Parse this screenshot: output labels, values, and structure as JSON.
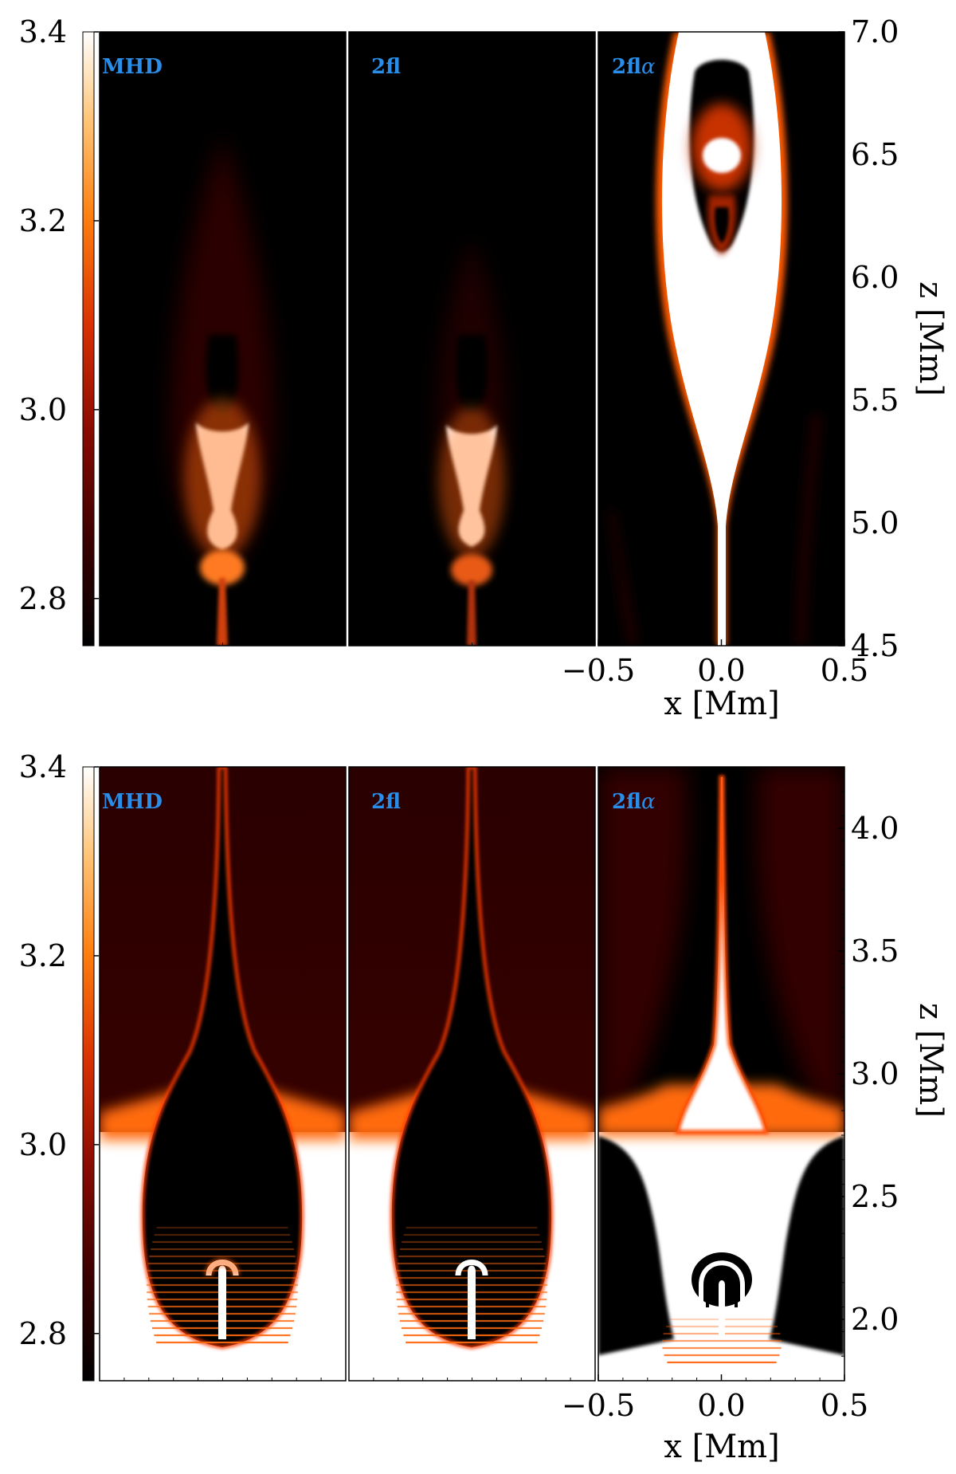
{
  "colors": {
    "background": "#000000",
    "label": "#2a8ee8",
    "colormap": [
      "#000000",
      "#3a0000",
      "#8a0a00",
      "#d83000",
      "#ff7f0f",
      "#ffc67a",
      "#ffffff"
    ]
  },
  "chart_data": [
    {
      "type": "heatmap",
      "name": "top-row",
      "colorbar": {
        "ticks": [
          "2.8",
          "3.0",
          "3.2",
          "3.4"
        ],
        "values": [
          2.8,
          3.0,
          3.2,
          3.4
        ],
        "range": [
          2.75,
          3.4
        ]
      },
      "panels": [
        {
          "label": "MHD"
        },
        {
          "label": "2fl"
        },
        {
          "label": "2fl",
          "label_suffix": "α"
        }
      ],
      "x_axis": {
        "label": "x [Mm]",
        "ticks": [
          "−0.5",
          "0.0",
          "0.5"
        ],
        "values": [
          -0.5,
          0.0,
          0.5
        ],
        "range": [
          -0.5,
          0.5
        ]
      },
      "y_axis": {
        "label": "z [Mm]",
        "ticks": [
          "4.5",
          "5.0",
          "5.5",
          "6.0",
          "6.5",
          "7.0"
        ],
        "values": [
          4.5,
          5.0,
          5.5,
          6.0,
          6.5,
          7.0
        ],
        "range": [
          4.5,
          7.0
        ]
      }
    },
    {
      "type": "heatmap",
      "name": "bottom-row",
      "colorbar": {
        "ticks": [
          "2.8",
          "3.0",
          "3.2",
          "3.4"
        ],
        "values": [
          2.8,
          3.0,
          3.2,
          3.4
        ],
        "range": [
          2.75,
          3.4
        ]
      },
      "panels": [
        {
          "label": "MHD"
        },
        {
          "label": "2fl"
        },
        {
          "label": "2fl",
          "label_suffix": "α"
        }
      ],
      "x_axis": {
        "label": "x [Mm]",
        "ticks": [
          "−0.5",
          "0.0",
          "0.5"
        ],
        "values": [
          -0.5,
          0.0,
          0.5
        ],
        "range": [
          -0.5,
          0.5
        ]
      },
      "y_axis": {
        "label": "z [Mm]",
        "ticks": [
          "2.0",
          "2.5",
          "3.0",
          "3.5",
          "4.0"
        ],
        "values": [
          2.0,
          2.5,
          3.0,
          3.5,
          4.0
        ],
        "range": [
          1.75,
          4.25
        ]
      }
    }
  ]
}
